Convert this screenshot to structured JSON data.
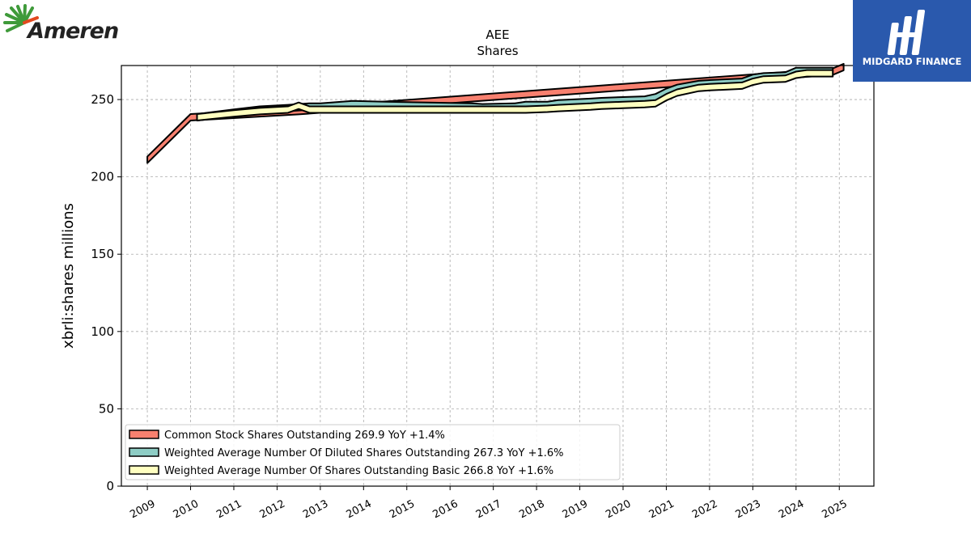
{
  "brand_left": {
    "name": "Ameren"
  },
  "brand_right": {
    "name": "MIDGARD FINANCE"
  },
  "chart_data": {
    "type": "area",
    "title": "AEE",
    "subtitle": "Shares",
    "ylabel": "xbrli:shares millions",
    "xlabel": "",
    "ylim": [
      0,
      272
    ],
    "xlim": [
      2008.4,
      2025.8
    ],
    "y_ticks": [
      0,
      50,
      100,
      150,
      200,
      250
    ],
    "x_tick_labels": [
      "2009",
      "2010",
      "2011",
      "2012",
      "2013",
      "2014",
      "2015",
      "2016",
      "2017",
      "2018",
      "2019",
      "2020",
      "2021",
      "2022",
      "2023",
      "2024",
      "2025"
    ],
    "grid": true,
    "legend_position": "lower-left",
    "series": [
      {
        "name": "Common Stock Shares Outstanding",
        "legend_label": "Common Stock Shares Outstanding  269.9 YoY +1.4%",
        "color": "#f8806f",
        "x": [
          2009.0,
          2010.0,
          2012.5,
          2024.85,
          2025.1
        ],
        "values": [
          211.0,
          238.5,
          242.5,
          268.0,
          271.0
        ]
      },
      {
        "name": "Weighted Average Number Of Diluted Shares Outstanding",
        "legend_label": "Weighted Average Number Of Diluted Shares Outstanding  267.3 YoY +1.6%",
        "color": "#8ecdc5",
        "x": [
          2010.15,
          2011.0,
          2011.6,
          2012.25,
          2012.5,
          2012.75,
          2013.0,
          2013.5,
          2013.75,
          2014.5,
          2015.5,
          2016.5,
          2016.75,
          2017.5,
          2017.75,
          2018.25,
          2018.5,
          2019.25,
          2019.5,
          2020.0,
          2020.5,
          2020.75,
          2021.0,
          2021.25,
          2021.75,
          2022.0,
          2022.75,
          2023.0,
          2023.25,
          2023.75,
          2024.0,
          2024.25,
          2024.85
        ],
        "values": [
          238.5,
          241.5,
          243.5,
          244.5,
          245.0,
          245.5,
          245.5,
          246.5,
          247.0,
          246.5,
          246.0,
          245.5,
          245.0,
          245.5,
          246.5,
          246.5,
          247.5,
          248.5,
          249.0,
          249.5,
          250.0,
          251.5,
          255.0,
          257.5,
          260.0,
          260.5,
          261.5,
          264.0,
          265.0,
          265.5,
          268.5,
          268.5,
          268.5
        ]
      },
      {
        "name": "Weighted Average Number Of Shares Outstanding Basic",
        "legend_label": "Weighted Average Number Of Shares Outstanding Basic  266.8 YoY +1.6%",
        "color": "#ffffc0",
        "x": [
          2010.15,
          2011.0,
          2011.6,
          2012.25,
          2012.5,
          2012.75,
          2013.0,
          2014.5,
          2015.5,
          2016.5,
          2017.5,
          2017.75,
          2018.25,
          2018.5,
          2019.25,
          2019.5,
          2020.0,
          2020.5,
          2020.75,
          2021.0,
          2021.25,
          2021.75,
          2022.0,
          2022.75,
          2023.0,
          2023.25,
          2023.75,
          2024.0,
          2024.25,
          2024.85
        ],
        "values": [
          238.5,
          241.0,
          242.5,
          243.5,
          246.0,
          243.5,
          243.5,
          243.5,
          243.5,
          243.5,
          243.5,
          243.5,
          244.0,
          244.5,
          245.5,
          246.0,
          246.5,
          247.0,
          247.5,
          251.5,
          254.5,
          257.5,
          258.0,
          259.0,
          261.5,
          263.0,
          263.5,
          266.0,
          267.0,
          267.0
        ]
      }
    ]
  }
}
